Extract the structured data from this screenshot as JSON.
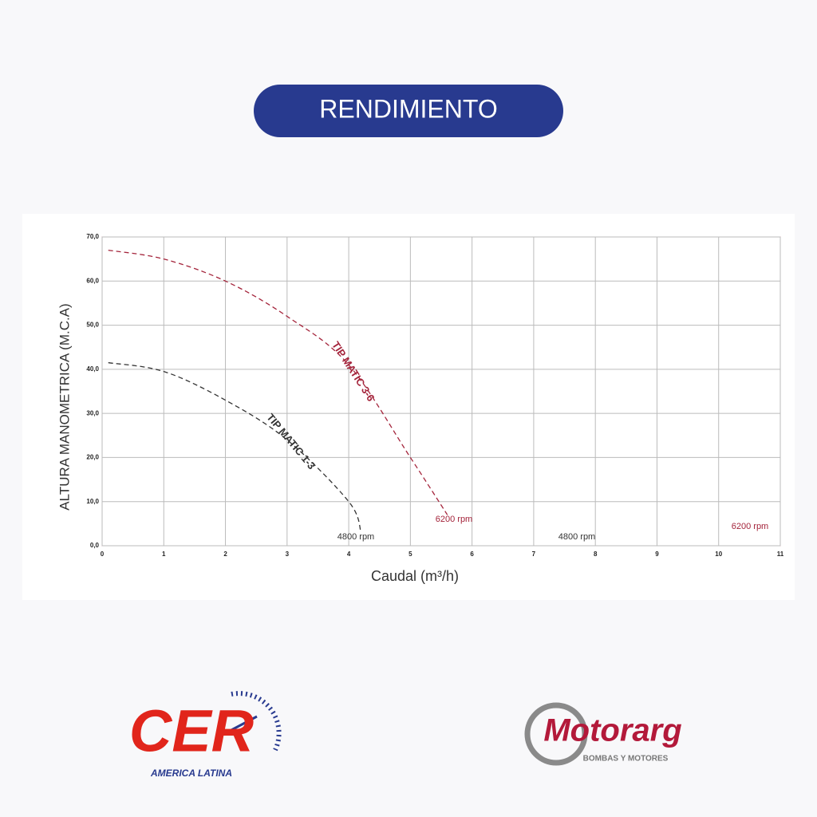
{
  "header": {
    "title": "RENDIMIENTO"
  },
  "chart_data": {
    "type": "line",
    "y_label": "ALTURA MANOMETRICA (M.C.A)",
    "x_label": "Caudal (m³/h)",
    "xlim": [
      0,
      11
    ],
    "xticks": [
      0,
      1,
      2,
      3,
      4,
      5,
      6,
      7,
      8,
      9,
      10,
      11
    ],
    "ylim": [
      0,
      70
    ],
    "yticks": [
      {
        "value": 0,
        "label": "0,0"
      },
      {
        "value": 10,
        "label": "10,0"
      },
      {
        "value": 20,
        "label": "20,0"
      },
      {
        "value": 30,
        "label": "30,0"
      },
      {
        "value": 40,
        "label": "40,0"
      },
      {
        "value": 50,
        "label": "50,0"
      },
      {
        "value": 60,
        "label": "60,0"
      },
      {
        "value": 70,
        "label": "70,0"
      }
    ],
    "grid": true,
    "series": [
      {
        "name": "TIP MATIC 3-6",
        "color": "#a4243b",
        "x": [
          0.1,
          1,
          2,
          3,
          4,
          5,
          5.6
        ],
        "values": [
          67,
          65,
          60,
          52,
          41,
          20,
          7
        ]
      },
      {
        "name": "TIP MATIC 1-3",
        "color": "#333333",
        "x": [
          0.1,
          1,
          2,
          3,
          4,
          4.2
        ],
        "values": [
          41.5,
          39.5,
          33,
          24,
          10,
          3
        ]
      }
    ],
    "annotations": [
      "4800 rpm",
      "6200 rpm",
      "4800 rpm",
      "6200 rpm"
    ]
  },
  "logos": [
    {
      "name": "CER",
      "subtitle": "AMERICA LATINA"
    },
    {
      "name": "Motorarg",
      "subtitle": "BOMBAS Y MOTORES"
    }
  ]
}
